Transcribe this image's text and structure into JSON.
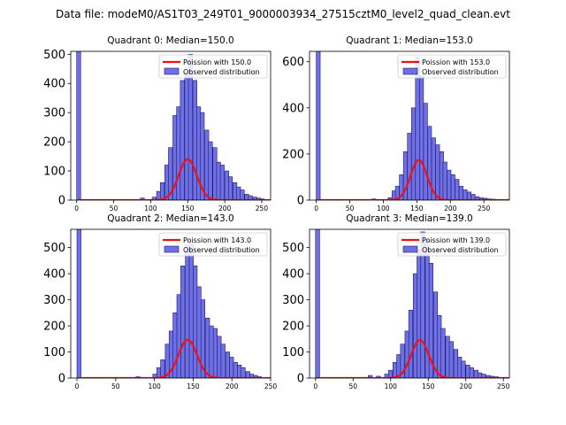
{
  "chart_data": {
    "suptitle": "Data file: modeM0/AS1T03_249T01_9000003934_27515cztM0_level2_quad_clean.evt",
    "bar_fill": "#7070e6",
    "bar_edge": "#1a1a6a",
    "line_color": "#ee1111",
    "panels": [
      {
        "type": "bar",
        "title": "Quadrant 0: Median=150.0",
        "xlim": [
          -8,
          262
        ],
        "ylim": [
          0,
          510
        ],
        "xticks": [
          0,
          50,
          100,
          150,
          200,
          250
        ],
        "yticks": [
          0,
          100,
          200,
          300,
          400,
          500
        ],
        "bin_width": 5.4,
        "legend": [
          "Poission with 150.0",
          "Observed distribution"
        ],
        "poisson_mean": 150,
        "poisson_scale": 4300,
        "bins": [
          [
            0,
            510
          ],
          [
            86,
            7
          ],
          [
            102,
            10
          ],
          [
            108,
            30
          ],
          [
            113,
            60
          ],
          [
            119,
            120
          ],
          [
            124,
            180
          ],
          [
            130,
            290
          ],
          [
            135,
            320
          ],
          [
            140,
            410
          ],
          [
            146,
            440
          ],
          [
            151,
            500
          ],
          [
            157,
            410
          ],
          [
            162,
            320
          ],
          [
            167,
            300
          ],
          [
            173,
            240
          ],
          [
            178,
            200
          ],
          [
            184,
            180
          ],
          [
            189,
            130
          ],
          [
            194,
            120
          ],
          [
            200,
            100
          ],
          [
            205,
            80
          ],
          [
            211,
            60
          ],
          [
            216,
            45
          ],
          [
            221,
            35
          ],
          [
            227,
            20
          ],
          [
            232,
            15
          ],
          [
            238,
            10
          ],
          [
            243,
            7
          ],
          [
            248,
            4
          ]
        ]
      },
      {
        "type": "bar",
        "title": "Quadrant 1: Median=153.0",
        "xlim": [
          -10,
          288
        ],
        "ylim": [
          0,
          645
        ],
        "xticks": [
          0,
          50,
          100,
          150,
          200,
          250
        ],
        "yticks": [
          0,
          200,
          400,
          600
        ],
        "bin_width": 5.9,
        "legend": [
          "Poission with 153.0",
          "Observed distribution"
        ],
        "poisson_mean": 153,
        "poisson_scale": 5400,
        "bins": [
          [
            0,
            645
          ],
          [
            83,
            5
          ],
          [
            107,
            10
          ],
          [
            113,
            40
          ],
          [
            118,
            60
          ],
          [
            124,
            110
          ],
          [
            130,
            210
          ],
          [
            136,
            290
          ],
          [
            142,
            400
          ],
          [
            148,
            620
          ],
          [
            154,
            540
          ],
          [
            160,
            420
          ],
          [
            166,
            320
          ],
          [
            172,
            270
          ],
          [
            178,
            240
          ],
          [
            184,
            210
          ],
          [
            189,
            165
          ],
          [
            195,
            130
          ],
          [
            201,
            110
          ],
          [
            207,
            90
          ],
          [
            213,
            60
          ],
          [
            219,
            45
          ],
          [
            225,
            35
          ],
          [
            231,
            25
          ],
          [
            237,
            15
          ],
          [
            243,
            10
          ],
          [
            249,
            8
          ],
          [
            255,
            5
          ],
          [
            261,
            4
          ],
          [
            267,
            2
          ],
          [
            273,
            2
          ]
        ]
      },
      {
        "type": "bar",
        "title": "Quadrant 2: Median=143.0",
        "xlim": [
          -8,
          250
        ],
        "ylim": [
          0,
          570
        ],
        "xticks": [
          0,
          50,
          100,
          150,
          200,
          250
        ],
        "yticks": [
          0,
          100,
          200,
          300,
          400,
          500
        ],
        "bin_width": 5.2,
        "legend": [
          "Poission with 143.0",
          "Observed distribution"
        ],
        "poisson_mean": 143,
        "poisson_scale": 4400,
        "bins": [
          [
            0,
            570
          ],
          [
            76,
            5
          ],
          [
            98,
            15
          ],
          [
            103,
            40
          ],
          [
            108,
            70
          ],
          [
            114,
            130
          ],
          [
            119,
            180
          ],
          [
            124,
            250
          ],
          [
            129,
            320
          ],
          [
            134,
            430
          ],
          [
            140,
            510
          ],
          [
            145,
            520
          ],
          [
            150,
            430
          ],
          [
            155,
            350
          ],
          [
            160,
            300
          ],
          [
            166,
            230
          ],
          [
            171,
            200
          ],
          [
            176,
            190
          ],
          [
            181,
            160
          ],
          [
            186,
            130
          ],
          [
            192,
            100
          ],
          [
            197,
            80
          ],
          [
            202,
            60
          ],
          [
            207,
            50
          ],
          [
            212,
            40
          ],
          [
            218,
            25
          ],
          [
            223,
            15
          ],
          [
            228,
            10
          ],
          [
            233,
            5
          ]
        ]
      },
      {
        "type": "bar",
        "title": "Quadrant 3: Median=139.0",
        "xlim": [
          -8,
          258
        ],
        "ylim": [
          0,
          570
        ],
        "xticks": [
          0,
          50,
          100,
          150,
          200,
          250
        ],
        "yticks": [
          0,
          100,
          200,
          300,
          400,
          500
        ],
        "bin_width": 5.4,
        "legend": [
          "Poission with 139.0",
          "Observed distribution"
        ],
        "poisson_mean": 139,
        "poisson_scale": 4300,
        "bins": [
          [
            0,
            570
          ],
          [
            70,
            10
          ],
          [
            81,
            7
          ],
          [
            92,
            15
          ],
          [
            97,
            30
          ],
          [
            103,
            60
          ],
          [
            108,
            90
          ],
          [
            113,
            130
          ],
          [
            119,
            180
          ],
          [
            124,
            260
          ],
          [
            130,
            400
          ],
          [
            135,
            490
          ],
          [
            140,
            560
          ],
          [
            146,
            530
          ],
          [
            151,
            440
          ],
          [
            157,
            330
          ],
          [
            162,
            240
          ],
          [
            167,
            190
          ],
          [
            173,
            160
          ],
          [
            178,
            140
          ],
          [
            184,
            110
          ],
          [
            189,
            80
          ],
          [
            194,
            65
          ],
          [
            200,
            50
          ],
          [
            205,
            40
          ],
          [
            211,
            30
          ],
          [
            216,
            20
          ],
          [
            221,
            15
          ],
          [
            227,
            10
          ],
          [
            232,
            7
          ],
          [
            238,
            5
          ]
        ]
      }
    ]
  }
}
